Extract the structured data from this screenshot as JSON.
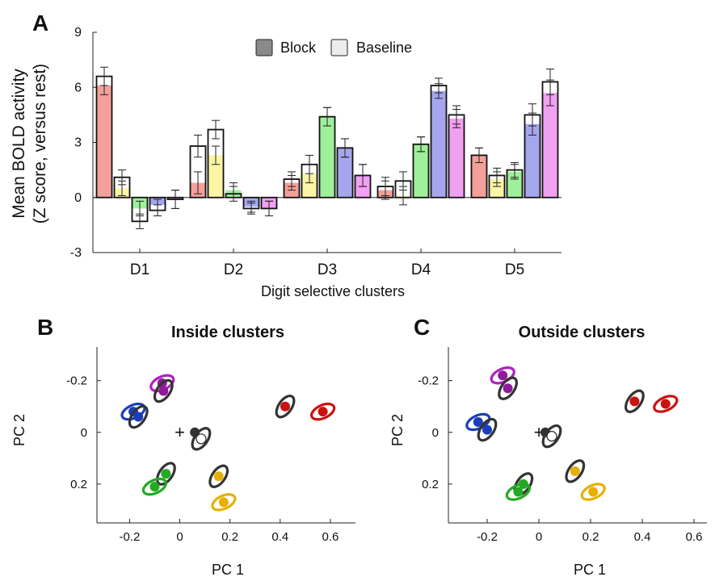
{
  "chart_data": [
    {
      "panel": "A",
      "type": "bar",
      "xlabel": "Digit selective clusters",
      "ylabel_line1": "Mean BOLD activity",
      "ylabel_line2": "(Z score, versus rest)",
      "ylim": [
        -3,
        9
      ],
      "yticks": [
        "9",
        "6",
        "3",
        "0",
        "-3"
      ],
      "ytick_values": [
        9,
        6,
        3,
        0,
        -3
      ],
      "categories": [
        "D1",
        "D2",
        "D3",
        "D4",
        "D5"
      ],
      "legend": [
        {
          "label": "Block",
          "color": "#8a8a8a"
        },
        {
          "label": "Baseline",
          "color": "#ececec"
        }
      ],
      "bar_colors": [
        "#f4a09a",
        "#fbf6a6",
        "#9ef19a",
        "#a6a6ef",
        "#f2a0f2"
      ],
      "block": [
        [
          6.1,
          0.5,
          -0.6,
          -0.4,
          -0.1
        ],
        [
          0.8,
          2.3,
          0.4,
          -0.5,
          -0.6
        ],
        [
          0.8,
          1.3,
          4.4,
          2.7,
          1.2
        ],
        [
          0.4,
          0.1,
          2.9,
          5.8,
          4.3
        ],
        [
          2.3,
          1.0,
          1.4,
          4.0,
          5.7
        ]
      ],
      "baseline": [
        [
          6.6,
          1.1,
          -1.3,
          -0.7,
          -0.1
        ],
        [
          2.8,
          3.7,
          0.2,
          -0.6,
          -0.6
        ],
        [
          1.0,
          1.8,
          4.4,
          2.7,
          1.2
        ],
        [
          0.6,
          0.9,
          2.9,
          6.1,
          4.5
        ],
        [
          2.3,
          1.2,
          1.5,
          4.5,
          6.3
        ]
      ],
      "errors": [
        [
          0.5,
          0.4,
          0.4,
          0.3,
          0.5
        ],
        [
          0.6,
          0.5,
          0.4,
          0.3,
          0.4
        ],
        [
          0.4,
          0.5,
          0.5,
          0.5,
          0.6
        ],
        [
          0.5,
          0.5,
          0.4,
          0.4,
          0.5
        ],
        [
          0.4,
          0.4,
          0.4,
          0.6,
          0.7
        ]
      ]
    },
    {
      "panel": "B",
      "type": "scatter",
      "title": "Inside clusters",
      "xlabel": "PC 1",
      "ylabel": "PC 2",
      "xlim": [
        -0.33,
        0.7
      ],
      "ylim": [
        -0.33,
        0.35
      ],
      "y_reversed": true,
      "xticks": [
        "-0.2",
        "0",
        "0.2",
        "0.4",
        "0.6"
      ],
      "xtick_values": [
        -0.2,
        0,
        0.2,
        0.4,
        0.6
      ],
      "yticks": [
        "-0.2",
        "0",
        "0.2"
      ],
      "ytick_values": [
        -0.2,
        0,
        0.2
      ],
      "origin_marker": "+",
      "points": [
        {
          "color": "#8e1a9c",
          "x": -0.07,
          "y": -0.19,
          "ring": "#b020c0"
        },
        {
          "color": "#8e1a9c",
          "x": -0.065,
          "y": -0.16,
          "ring": "#333333"
        },
        {
          "color": "#1a3eb8",
          "x": -0.185,
          "y": -0.08,
          "ring": "#1a3eb8"
        },
        {
          "color": "#1a3eb8",
          "x": -0.165,
          "y": -0.06,
          "ring": "#333333"
        },
        {
          "color": "#cc1111",
          "x": 0.42,
          "y": -0.1,
          "ring": "#333333"
        },
        {
          "color": "#cc1111",
          "x": 0.57,
          "y": -0.08,
          "ring": "#cc1111"
        },
        {
          "color": "#333333",
          "x": 0.06,
          "y": 0.0,
          "ring": "none"
        },
        {
          "color": "#ffffff",
          "x": 0.085,
          "y": 0.025,
          "ring": "#333333"
        },
        {
          "color": "#22aa22",
          "x": -0.055,
          "y": 0.16,
          "ring": "#333333"
        },
        {
          "color": "#22aa22",
          "x": -0.1,
          "y": 0.21,
          "ring": "#22aa22"
        },
        {
          "color": "#e6b000",
          "x": 0.155,
          "y": 0.17,
          "ring": "#333333"
        },
        {
          "color": "#e6b000",
          "x": 0.175,
          "y": 0.27,
          "ring": "#e6b000"
        }
      ]
    },
    {
      "panel": "C",
      "type": "scatter",
      "title": "Outside clusters",
      "xlabel": "PC 1",
      "ylabel": "PC 2",
      "xlim": [
        -0.35,
        0.65
      ],
      "ylim": [
        -0.33,
        0.35
      ],
      "y_reversed": true,
      "xticks": [
        "-0.2",
        "0",
        "0.2",
        "0.4",
        "0.6"
      ],
      "xtick_values": [
        -0.2,
        0,
        0.2,
        0.4,
        0.6
      ],
      "yticks": [
        "-0.2",
        "0",
        "0.2"
      ],
      "ytick_values": [
        -0.2,
        0,
        0.2
      ],
      "origin_marker": "+",
      "points": [
        {
          "color": "#8e1a9c",
          "x": -0.14,
          "y": -0.22,
          "ring": "#b020c0"
        },
        {
          "color": "#8e1a9c",
          "x": -0.12,
          "y": -0.17,
          "ring": "#333333"
        },
        {
          "color": "#1a3eb8",
          "x": -0.235,
          "y": -0.04,
          "ring": "#1a3eb8"
        },
        {
          "color": "#1a3eb8",
          "x": -0.2,
          "y": -0.01,
          "ring": "#333333"
        },
        {
          "color": "#cc1111",
          "x": 0.37,
          "y": -0.12,
          "ring": "#333333"
        },
        {
          "color": "#cc1111",
          "x": 0.49,
          "y": -0.11,
          "ring": "#cc1111"
        },
        {
          "color": "#333333",
          "x": 0.025,
          "y": 0.0,
          "ring": "none"
        },
        {
          "color": "#ffffff",
          "x": 0.05,
          "y": 0.015,
          "ring": "#333333"
        },
        {
          "color": "#22aa22",
          "x": -0.06,
          "y": 0.2,
          "ring": "#333333"
        },
        {
          "color": "#22aa22",
          "x": -0.08,
          "y": 0.23,
          "ring": "#22aa22"
        },
        {
          "color": "#e6b000",
          "x": 0.14,
          "y": 0.15,
          "ring": "#333333"
        },
        {
          "color": "#e6b000",
          "x": 0.21,
          "y": 0.23,
          "ring": "#e6b000"
        }
      ]
    }
  ],
  "panel_labels": [
    "A",
    "B",
    "C"
  ]
}
